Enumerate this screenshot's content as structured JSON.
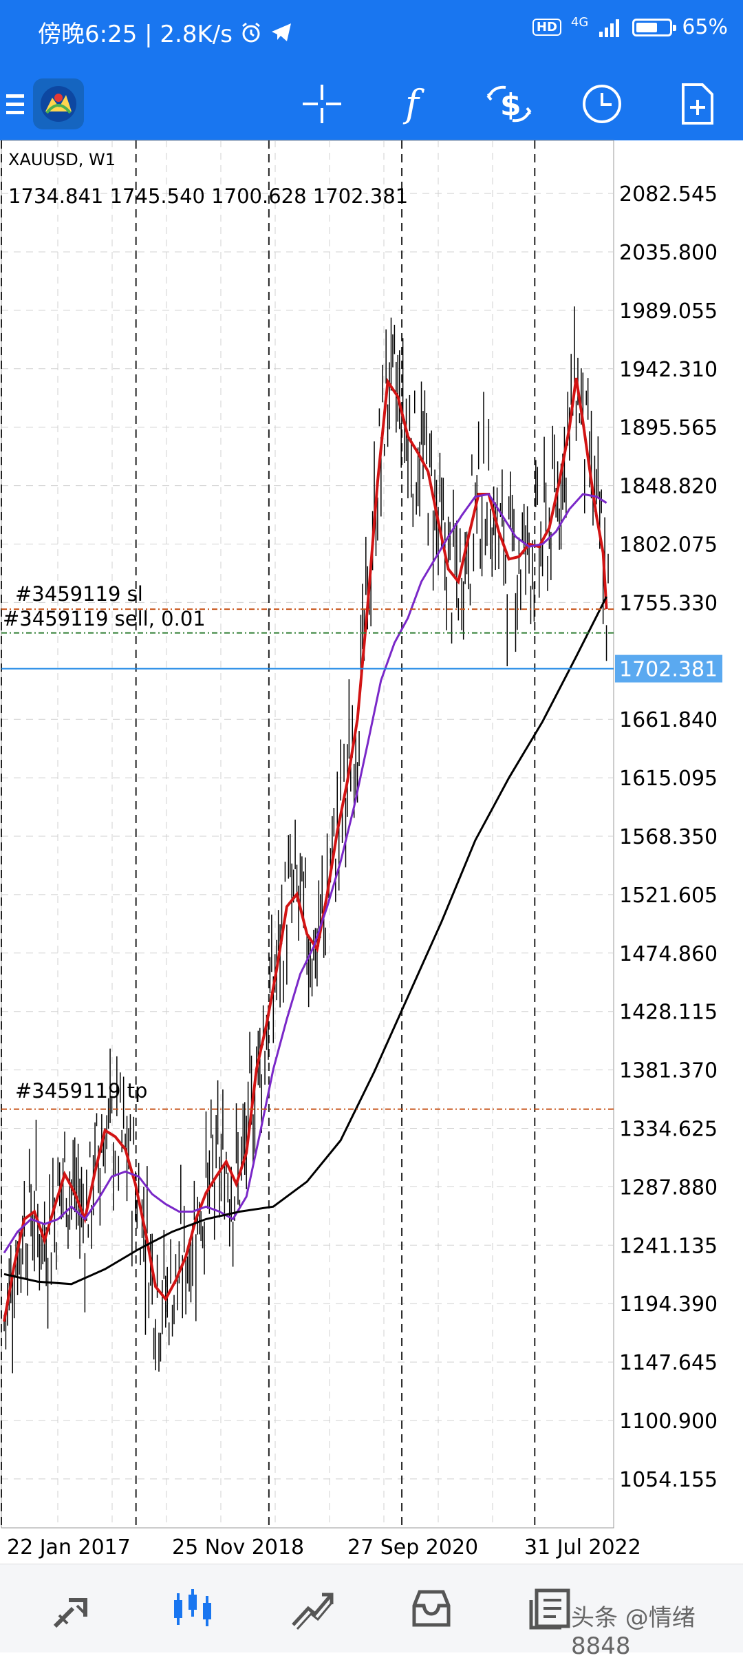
{
  "status_bar": {
    "time_text": "傍晚6:25 | 2.8K/s",
    "network_badge": "HD",
    "network_type": "4G",
    "battery_level": 0.65,
    "battery_text": "65%"
  },
  "toolbar": {
    "icons": [
      "menu-icon",
      "mt5-app-logo",
      "crosshair-icon",
      "indicators-icon",
      "trade-icon",
      "history-clock-icon",
      "new-order-icon"
    ]
  },
  "chart": {
    "symbol_label": "XAUUSD, W1",
    "ohlc_text": "1734.841 1745.540 1700.628 1702.381",
    "current_price_label": "1702.381",
    "orders": {
      "sl_label": "#3459119 sl",
      "sell_label": "#3459119 sell, 0.01",
      "tp_label": "#3459119 tp"
    },
    "colors": {
      "bid_line": "#1e88e5",
      "order_levels": "#c8541a",
      "entry_level": "#2e7d32",
      "ma_fast": "#d21414",
      "ma_mid": "#7a28c8",
      "ma_slow": "#000000"
    }
  },
  "chart_data": {
    "type": "candlestick",
    "title": "XAUUSD, W1",
    "x_tick_labels": [
      "22 Jan 2017",
      "25 Nov 2018",
      "27 Sep 2020",
      "31 Jul 2022"
    ],
    "y_tick_labels": [
      "2082.545",
      "2035.800",
      "1989.055",
      "1942.310",
      "1895.565",
      "1848.820",
      "1802.075",
      "1755.330",
      "1661.840",
      "1615.095",
      "1568.350",
      "1521.605",
      "1474.860",
      "1428.115",
      "1381.370",
      "1334.625",
      "1287.880",
      "1241.135",
      "1194.390",
      "1147.645",
      "1100.900",
      "1054.155"
    ],
    "ylim": [
      1015,
      2125
    ],
    "grid": true,
    "last_price": 1702.381,
    "levels": {
      "stop_loss": 1750,
      "sell_entry": 1731,
      "take_profit": 1350
    },
    "series": [
      {
        "name": "",
        "color": "#d21414",
        "points": [
          [
            0,
            1180
          ],
          [
            6,
            1225
          ],
          [
            12,
            1262
          ],
          [
            18,
            1268
          ],
          [
            24,
            1245
          ],
          [
            30,
            1272
          ],
          [
            36,
            1298
          ],
          [
            42,
            1283
          ],
          [
            48,
            1262
          ],
          [
            54,
            1300
          ],
          [
            60,
            1333
          ],
          [
            66,
            1328
          ],
          [
            72,
            1318
          ],
          [
            78,
            1290
          ],
          [
            84,
            1252
          ],
          [
            90,
            1208
          ],
          [
            96,
            1198
          ],
          [
            102,
            1213
          ],
          [
            108,
            1232
          ],
          [
            114,
            1262
          ],
          [
            120,
            1283
          ],
          [
            126,
            1296
          ],
          [
            132,
            1308
          ],
          [
            138,
            1290
          ],
          [
            144,
            1315
          ],
          [
            150,
            1382
          ],
          [
            156,
            1418
          ],
          [
            162,
            1462
          ],
          [
            168,
            1512
          ],
          [
            174,
            1522
          ],
          [
            180,
            1490
          ],
          [
            186,
            1478
          ],
          [
            192,
            1522
          ],
          [
            198,
            1572
          ],
          [
            204,
            1612
          ],
          [
            210,
            1662
          ],
          [
            216,
            1752
          ],
          [
            222,
            1852
          ],
          [
            228,
            1932
          ],
          [
            234,
            1920
          ],
          [
            240,
            1888
          ],
          [
            246,
            1875
          ],
          [
            252,
            1860
          ],
          [
            258,
            1820
          ],
          [
            264,
            1782
          ],
          [
            270,
            1772
          ],
          [
            276,
            1808
          ],
          [
            282,
            1842
          ],
          [
            288,
            1842
          ],
          [
            294,
            1812
          ],
          [
            300,
            1790
          ],
          [
            306,
            1792
          ],
          [
            312,
            1802
          ],
          [
            318,
            1800
          ],
          [
            324,
            1815
          ],
          [
            330,
            1852
          ],
          [
            336,
            1895
          ],
          [
            340,
            1935
          ],
          [
            344,
            1900
          ],
          [
            348,
            1862
          ],
          [
            352,
            1825
          ],
          [
            356,
            1795
          ],
          [
            358,
            1750
          ]
        ]
      },
      {
        "name": "",
        "color": "#7a28c8",
        "points": [
          [
            0,
            1235
          ],
          [
            8,
            1252
          ],
          [
            16,
            1262
          ],
          [
            24,
            1258
          ],
          [
            32,
            1262
          ],
          [
            40,
            1272
          ],
          [
            48,
            1262
          ],
          [
            56,
            1278
          ],
          [
            64,
            1296
          ],
          [
            72,
            1300
          ],
          [
            80,
            1296
          ],
          [
            88,
            1282
          ],
          [
            96,
            1274
          ],
          [
            104,
            1268
          ],
          [
            112,
            1268
          ],
          [
            120,
            1272
          ],
          [
            128,
            1268
          ],
          [
            136,
            1262
          ],
          [
            144,
            1280
          ],
          [
            152,
            1330
          ],
          [
            160,
            1382
          ],
          [
            168,
            1422
          ],
          [
            176,
            1458
          ],
          [
            184,
            1480
          ],
          [
            192,
            1512
          ],
          [
            200,
            1548
          ],
          [
            208,
            1592
          ],
          [
            216,
            1642
          ],
          [
            224,
            1693
          ],
          [
            232,
            1723
          ],
          [
            240,
            1743
          ],
          [
            248,
            1772
          ],
          [
            256,
            1790
          ],
          [
            264,
            1808
          ],
          [
            272,
            1825
          ],
          [
            280,
            1840
          ],
          [
            288,
            1842
          ],
          [
            296,
            1825
          ],
          [
            304,
            1808
          ],
          [
            312,
            1800
          ],
          [
            320,
            1802
          ],
          [
            328,
            1812
          ],
          [
            336,
            1830
          ],
          [
            344,
            1842
          ],
          [
            352,
            1840
          ],
          [
            358,
            1835
          ]
        ]
      },
      {
        "name": "",
        "color": "#000000",
        "points": [
          [
            0,
            1218
          ],
          [
            20,
            1212
          ],
          [
            40,
            1210
          ],
          [
            60,
            1222
          ],
          [
            80,
            1238
          ],
          [
            100,
            1252
          ],
          [
            120,
            1262
          ],
          [
            140,
            1268
          ],
          [
            160,
            1272
          ],
          [
            180,
            1292
          ],
          [
            200,
            1325
          ],
          [
            220,
            1380
          ],
          [
            240,
            1440
          ],
          [
            260,
            1500
          ],
          [
            280,
            1565
          ],
          [
            300,
            1615
          ],
          [
            320,
            1660
          ],
          [
            340,
            1712
          ],
          [
            358,
            1760
          ]
        ]
      }
    ]
  },
  "bottom_nav": {
    "items": [
      "quotes-tab-icon",
      "chart-tab-icon",
      "trade-tab-icon",
      "history-tab-icon",
      "messages-tab-icon"
    ],
    "watermark": "头条 @情绪8848"
  }
}
